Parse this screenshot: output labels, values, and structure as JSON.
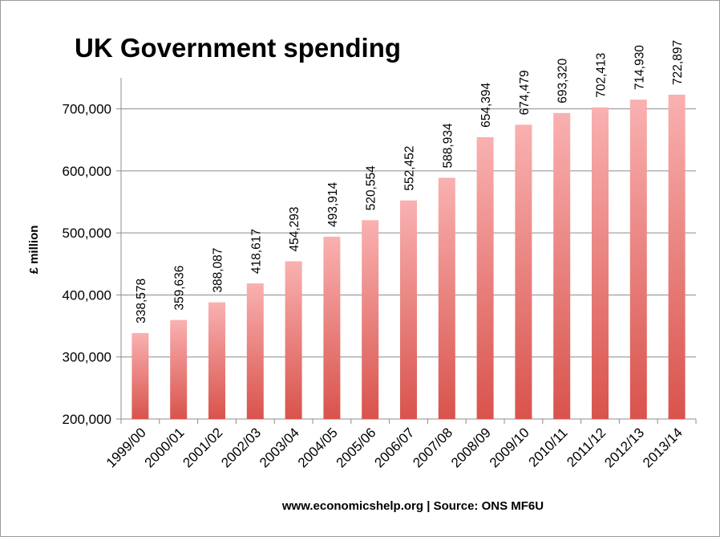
{
  "chart_data": {
    "type": "bar",
    "title": "UK Government spending",
    "xlabel": "",
    "ylabel": "£ million",
    "source_note": "www.economicshelp.org | Source: ONS MF6U",
    "categories": [
      "1999/00",
      "2000/01",
      "2001/02",
      "2002/03",
      "2003/04",
      "2004/05",
      "2005/06",
      "2006/07",
      "2007/08",
      "2008/09",
      "2009/10",
      "2010/11",
      "2011/12",
      "2012/13",
      "2013/14"
    ],
    "values": [
      338578,
      359636,
      388087,
      418617,
      454293,
      493914,
      520554,
      552452,
      588934,
      654394,
      674479,
      693320,
      702413,
      714930,
      722897
    ],
    "value_labels": [
      "338,578",
      "359,636",
      "388,087",
      "418,617",
      "454,293",
      "493,914",
      "520,554",
      "552,452",
      "588,934",
      "654,394",
      "674,479",
      "693,320",
      "702,413",
      "714,930",
      "722,897"
    ],
    "ylim": [
      200000,
      750000
    ],
    "yticks": [
      200000,
      300000,
      400000,
      500000,
      600000,
      700000
    ],
    "ytick_labels": [
      "200,000",
      "300,000",
      "400,000",
      "500,000",
      "600,000",
      "700,000"
    ],
    "grid": true,
    "legend": "none",
    "colors": {
      "bar_top": "#f9b1b1",
      "bar_bottom": "#d9534c",
      "grid": "#8c8c8c"
    }
  }
}
